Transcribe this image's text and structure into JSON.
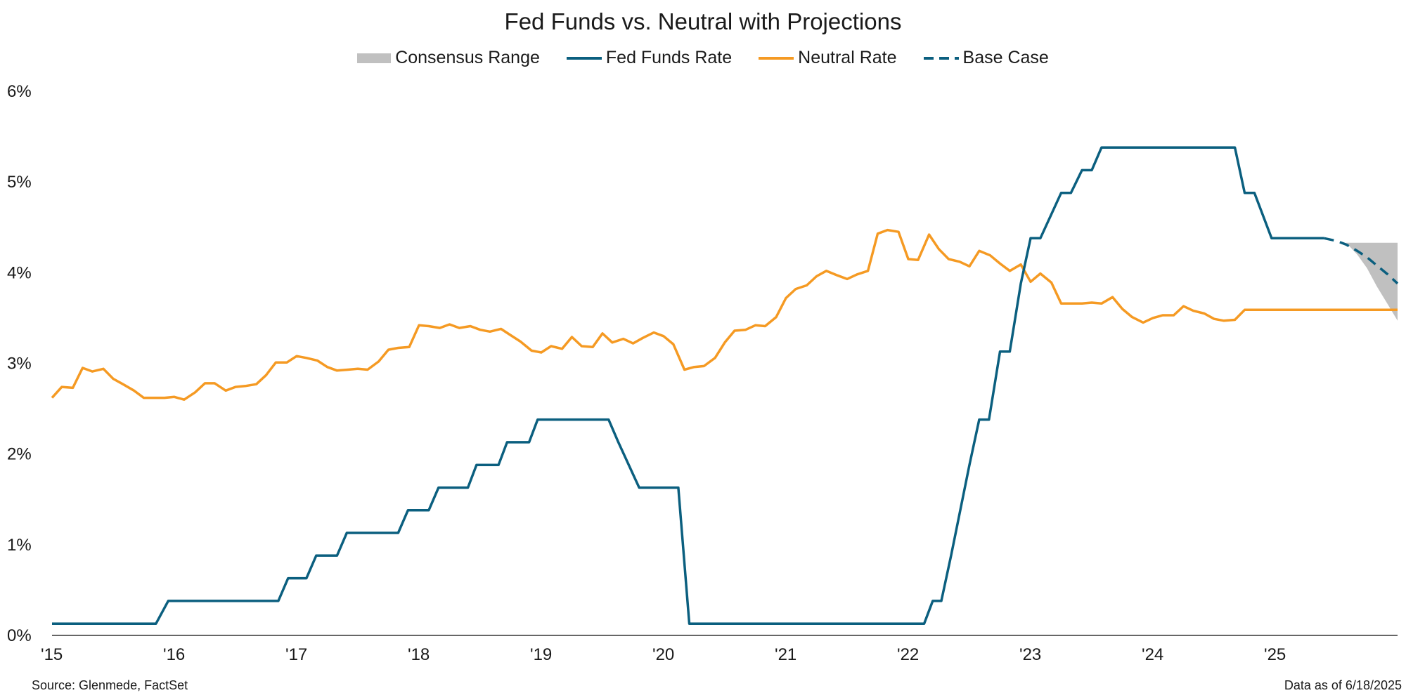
{
  "chart_data": {
    "type": "line",
    "title": "Fed Funds vs. Neutral with Projections",
    "xlabel": "",
    "ylabel": "",
    "x_unit": "year",
    "xlim": [
      2015.0,
      2026.0
    ],
    "ylim": [
      0,
      6
    ],
    "y_ticks": [
      "0%",
      "1%",
      "2%",
      "3%",
      "4%",
      "5%",
      "6%"
    ],
    "x_ticks": [
      {
        "x": 2015,
        "label": "'15"
      },
      {
        "x": 2016,
        "label": "'16"
      },
      {
        "x": 2017,
        "label": "'17"
      },
      {
        "x": 2018,
        "label": "'18"
      },
      {
        "x": 2019,
        "label": "'19"
      },
      {
        "x": 2020,
        "label": "'20"
      },
      {
        "x": 2021,
        "label": "'21"
      },
      {
        "x": 2022,
        "label": "'22"
      },
      {
        "x": 2023,
        "label": "'23"
      },
      {
        "x": 2024,
        "label": "'24"
      },
      {
        "x": 2025,
        "label": "'25"
      }
    ],
    "grid": false,
    "legend_position": "top-center",
    "series": [
      {
        "name": "Fed Funds Rate",
        "color": "#0b5f7f",
        "style": "solid",
        "points": [
          [
            2015.0,
            0.13
          ],
          [
            2015.85,
            0.13
          ],
          [
            2015.95,
            0.38
          ],
          [
            2016.85,
            0.38
          ],
          [
            2016.93,
            0.63
          ],
          [
            2017.08,
            0.63
          ],
          [
            2017.16,
            0.88
          ],
          [
            2017.33,
            0.88
          ],
          [
            2017.41,
            1.13
          ],
          [
            2017.83,
            1.13
          ],
          [
            2017.91,
            1.38
          ],
          [
            2018.08,
            1.38
          ],
          [
            2018.16,
            1.63
          ],
          [
            2018.4,
            1.63
          ],
          [
            2018.47,
            1.88
          ],
          [
            2018.65,
            1.88
          ],
          [
            2018.72,
            2.13
          ],
          [
            2018.9,
            2.13
          ],
          [
            2018.97,
            2.38
          ],
          [
            2019.55,
            2.38
          ],
          [
            2019.63,
            2.13
          ],
          [
            2019.8,
            1.63
          ],
          [
            2020.12,
            1.63
          ],
          [
            2020.21,
            0.13
          ],
          [
            2022.13,
            0.13
          ],
          [
            2022.2,
            0.38
          ],
          [
            2022.27,
            0.38
          ],
          [
            2022.35,
            0.88
          ],
          [
            2022.5,
            1.88
          ],
          [
            2022.58,
            2.38
          ],
          [
            2022.66,
            2.38
          ],
          [
            2022.75,
            3.13
          ],
          [
            2022.83,
            3.13
          ],
          [
            2022.92,
            3.88
          ],
          [
            2023.0,
            4.38
          ],
          [
            2023.08,
            4.38
          ],
          [
            2023.25,
            4.88
          ],
          [
            2023.33,
            4.88
          ],
          [
            2023.42,
            5.13
          ],
          [
            2023.5,
            5.13
          ],
          [
            2023.58,
            5.38
          ],
          [
            2024.67,
            5.38
          ],
          [
            2024.75,
            4.88
          ],
          [
            2024.83,
            4.88
          ],
          [
            2024.97,
            4.38
          ],
          [
            2025.4,
            4.38
          ]
        ]
      },
      {
        "name": "Neutral Rate",
        "color": "#f59a23",
        "style": "solid",
        "points": [
          [
            2015.0,
            2.62
          ],
          [
            2015.08,
            2.74
          ],
          [
            2015.17,
            2.73
          ],
          [
            2015.25,
            2.95
          ],
          [
            2015.33,
            2.91
          ],
          [
            2015.42,
            2.94
          ],
          [
            2015.5,
            2.83
          ],
          [
            2015.58,
            2.77
          ],
          [
            2015.67,
            2.7
          ],
          [
            2015.75,
            2.62
          ],
          [
            2015.83,
            2.62
          ],
          [
            2015.92,
            2.62
          ],
          [
            2016.0,
            2.63
          ],
          [
            2016.08,
            2.6
          ],
          [
            2016.17,
            2.68
          ],
          [
            2016.25,
            2.78
          ],
          [
            2016.33,
            2.78
          ],
          [
            2016.42,
            2.7
          ],
          [
            2016.5,
            2.74
          ],
          [
            2016.58,
            2.75
          ],
          [
            2016.67,
            2.77
          ],
          [
            2016.75,
            2.87
          ],
          [
            2016.83,
            3.01
          ],
          [
            2016.92,
            3.01
          ],
          [
            2017.0,
            3.08
          ],
          [
            2017.08,
            3.06
          ],
          [
            2017.17,
            3.03
          ],
          [
            2017.25,
            2.96
          ],
          [
            2017.33,
            2.92
          ],
          [
            2017.42,
            2.93
          ],
          [
            2017.5,
            2.94
          ],
          [
            2017.58,
            2.93
          ],
          [
            2017.67,
            3.02
          ],
          [
            2017.75,
            3.15
          ],
          [
            2017.83,
            3.17
          ],
          [
            2017.92,
            3.18
          ],
          [
            2018.0,
            3.42
          ],
          [
            2018.08,
            3.41
          ],
          [
            2018.17,
            3.39
          ],
          [
            2018.25,
            3.43
          ],
          [
            2018.33,
            3.39
          ],
          [
            2018.42,
            3.41
          ],
          [
            2018.5,
            3.37
          ],
          [
            2018.58,
            3.35
          ],
          [
            2018.67,
            3.38
          ],
          [
            2018.75,
            3.31
          ],
          [
            2018.83,
            3.24
          ],
          [
            2018.92,
            3.14
          ],
          [
            2019.0,
            3.12
          ],
          [
            2019.08,
            3.19
          ],
          [
            2019.17,
            3.16
          ],
          [
            2019.25,
            3.29
          ],
          [
            2019.33,
            3.19
          ],
          [
            2019.42,
            3.18
          ],
          [
            2019.5,
            3.33
          ],
          [
            2019.58,
            3.23
          ],
          [
            2019.67,
            3.27
          ],
          [
            2019.75,
            3.22
          ],
          [
            2019.83,
            3.28
          ],
          [
            2019.92,
            3.34
          ],
          [
            2020.0,
            3.3
          ],
          [
            2020.08,
            3.21
          ],
          [
            2020.17,
            2.93
          ],
          [
            2020.25,
            2.96
          ],
          [
            2020.33,
            2.97
          ],
          [
            2020.42,
            3.06
          ],
          [
            2020.5,
            3.23
          ],
          [
            2020.58,
            3.36
          ],
          [
            2020.67,
            3.37
          ],
          [
            2020.75,
            3.42
          ],
          [
            2020.83,
            3.41
          ],
          [
            2020.92,
            3.51
          ],
          [
            2021.0,
            3.72
          ],
          [
            2021.08,
            3.82
          ],
          [
            2021.17,
            3.86
          ],
          [
            2021.25,
            3.96
          ],
          [
            2021.33,
            4.02
          ],
          [
            2021.42,
            3.97
          ],
          [
            2021.5,
            3.93
          ],
          [
            2021.58,
            3.98
          ],
          [
            2021.67,
            4.02
          ],
          [
            2021.75,
            4.43
          ],
          [
            2021.83,
            4.47
          ],
          [
            2021.92,
            4.45
          ],
          [
            2022.0,
            4.15
          ],
          [
            2022.08,
            4.14
          ],
          [
            2022.17,
            4.42
          ],
          [
            2022.25,
            4.26
          ],
          [
            2022.33,
            4.15
          ],
          [
            2022.42,
            4.12
          ],
          [
            2022.5,
            4.07
          ],
          [
            2022.58,
            4.24
          ],
          [
            2022.67,
            4.19
          ],
          [
            2022.75,
            4.1
          ],
          [
            2022.83,
            4.02
          ],
          [
            2022.92,
            4.09
          ],
          [
            2023.0,
            3.9
          ],
          [
            2023.08,
            3.99
          ],
          [
            2023.17,
            3.89
          ],
          [
            2023.25,
            3.66
          ],
          [
            2023.33,
            3.66
          ],
          [
            2023.42,
            3.66
          ],
          [
            2023.5,
            3.67
          ],
          [
            2023.58,
            3.66
          ],
          [
            2023.67,
            3.73
          ],
          [
            2023.75,
            3.6
          ],
          [
            2023.83,
            3.51
          ],
          [
            2023.92,
            3.45
          ],
          [
            2024.0,
            3.5
          ],
          [
            2024.08,
            3.53
          ],
          [
            2024.17,
            3.53
          ],
          [
            2024.25,
            3.63
          ],
          [
            2024.33,
            3.58
          ],
          [
            2024.42,
            3.55
          ],
          [
            2024.5,
            3.49
          ],
          [
            2024.58,
            3.47
          ],
          [
            2024.67,
            3.48
          ],
          [
            2024.75,
            3.59
          ],
          [
            2024.83,
            3.59
          ],
          [
            2026.0,
            3.59
          ]
        ]
      },
      {
        "name": "Base Case",
        "color": "#0b5f7f",
        "style": "dashed",
        "points": [
          [
            2025.4,
            4.38
          ],
          [
            2025.5,
            4.35
          ],
          [
            2025.58,
            4.31
          ],
          [
            2025.67,
            4.24
          ],
          [
            2025.75,
            4.17
          ],
          [
            2025.83,
            4.08
          ],
          [
            2025.92,
            3.98
          ],
          [
            2026.0,
            3.88
          ]
        ]
      },
      {
        "name": "Consensus Range",
        "color": "#c0c0c0",
        "style": "area",
        "upper": [
          [
            2025.58,
            4.33
          ],
          [
            2026.0,
            4.33
          ]
        ],
        "lower": [
          [
            2025.58,
            4.33
          ],
          [
            2025.67,
            4.2
          ],
          [
            2025.75,
            4.05
          ],
          [
            2025.83,
            3.85
          ],
          [
            2025.92,
            3.65
          ],
          [
            2026.0,
            3.47
          ]
        ]
      }
    ]
  },
  "legend": [
    {
      "label": "Consensus Range"
    },
    {
      "label": "Fed Funds Rate"
    },
    {
      "label": "Neutral Rate"
    },
    {
      "label": "Base Case"
    }
  ],
  "footer": {
    "source": "Source: Glenmede, FactSet",
    "as_of": "Data as of 6/18/2025"
  }
}
